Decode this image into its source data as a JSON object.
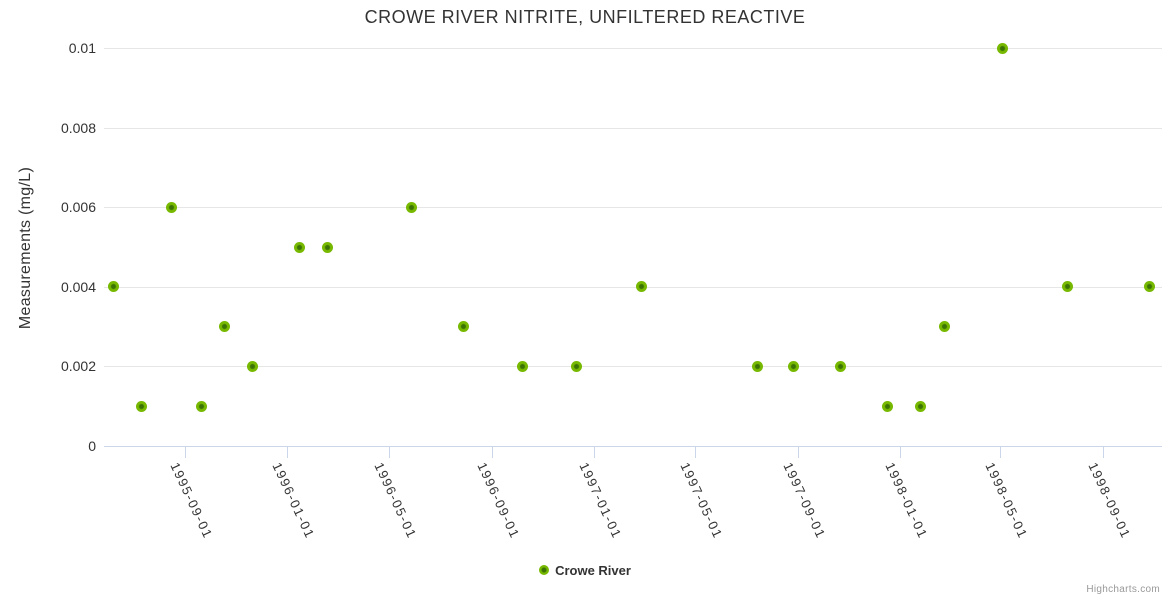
{
  "credit": "Highcharts.com",
  "chart_data": {
    "type": "scatter",
    "title": "CROWE RIVER NITRITE, UNFILTERED REACTIVE",
    "xlabel": "",
    "ylabel": "Measurements (mg/L)",
    "ylim": [
      0,
      0.01
    ],
    "yticks": [
      0,
      0.002,
      0.004,
      0.006,
      0.008,
      0.01
    ],
    "ytick_labels": [
      "0",
      "0.002",
      "0.004",
      "0.006",
      "0.008",
      "0.01"
    ],
    "xlim": [
      "1995-05-27",
      "1998-11-10"
    ],
    "xtick_labels": [
      "1995-09-01",
      "1996-01-01",
      "1996-05-01",
      "1996-09-01",
      "1997-01-01",
      "1997-05-01",
      "1997-09-01",
      "1998-01-01",
      "1998-05-01",
      "1998-09-01"
    ],
    "grid": "horizontal",
    "legend_position": "bottom-center",
    "marker_color": "#77b800",
    "marker_center_color": "#3b7304",
    "axis_line_color": "#ccd6eb",
    "gridline_color": "#e6e6e6",
    "series": [
      {
        "name": "Crowe River",
        "color": "#77b800",
        "points": [
          {
            "date": "1995-06-07",
            "value": 0.004
          },
          {
            "date": "1995-07-11",
            "value": 0.001
          },
          {
            "date": "1995-08-15",
            "value": 0.006
          },
          {
            "date": "1995-09-20",
            "value": 0.001
          },
          {
            "date": "1995-10-18",
            "value": 0.003
          },
          {
            "date": "1995-11-20",
            "value": 0.002
          },
          {
            "date": "1996-01-15",
            "value": 0.005
          },
          {
            "date": "1996-02-18",
            "value": 0.005
          },
          {
            "date": "1996-05-28",
            "value": 0.006
          },
          {
            "date": "1996-07-29",
            "value": 0.003
          },
          {
            "date": "1996-10-07",
            "value": 0.002
          },
          {
            "date": "1996-12-11",
            "value": 0.002
          },
          {
            "date": "1997-02-27",
            "value": 0.004
          },
          {
            "date": "1997-07-15",
            "value": 0.002
          },
          {
            "date": "1997-08-27",
            "value": 0.002
          },
          {
            "date": "1997-10-22",
            "value": 0.002
          },
          {
            "date": "1997-12-17",
            "value": 0.001
          },
          {
            "date": "1998-01-26",
            "value": 0.001
          },
          {
            "date": "1998-02-23",
            "value": 0.003
          },
          {
            "date": "1998-05-04",
            "value": 0.01
          },
          {
            "date": "1998-07-20",
            "value": 0.004
          },
          {
            "date": "1998-10-26",
            "value": 0.004
          }
        ]
      }
    ]
  }
}
